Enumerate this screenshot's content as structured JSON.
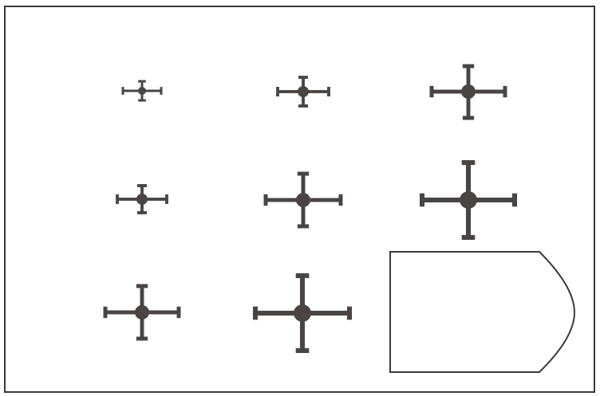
{
  "colors": {
    "background": "#ffffff",
    "frame": "#3a3a3a",
    "symbol": "#4a4445",
    "answer_box": "#3a3a3a"
  },
  "figure": {
    "grid": {
      "rows": 3,
      "columns": 3
    },
    "symbol_icon": "crosshair-icon",
    "answer_box_icon": "answer-box-icon"
  }
}
